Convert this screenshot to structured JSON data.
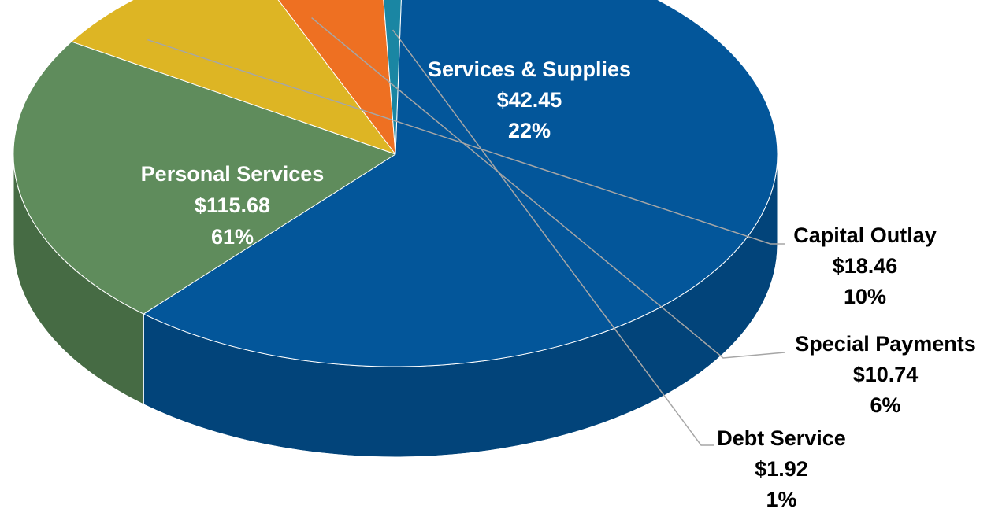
{
  "chart_data": {
    "type": "pie",
    "title": "",
    "slices": [
      {
        "label": "Personal Services",
        "value": 115.68,
        "value_label": "$115.68",
        "percent_label": "61%",
        "color": "#03569A",
        "side_color": "#02447A",
        "label_color": "#ffffff"
      },
      {
        "label": "Services & Supplies",
        "value": 42.45,
        "value_label": "$42.45",
        "percent_label": "22%",
        "color": "#5F8C5C",
        "side_color": "#466B44",
        "label_color": "#ffffff"
      },
      {
        "label": "Capital Outlay",
        "value": 18.46,
        "value_label": "$18.46",
        "percent_label": "10%",
        "color": "#DDB524",
        "side_color": "#6E5710",
        "label_color": "#000000"
      },
      {
        "label": "Special Payments",
        "value": 10.74,
        "value_label": "$10.74",
        "percent_label": "6%",
        "color": "#EE7022",
        "side_color": "#6A2E0E",
        "label_color": "#000000"
      },
      {
        "label": "Debt Service",
        "value": 1.92,
        "value_label": "$1.92",
        "percent_label": "1%",
        "color": "#1A86A3",
        "side_color": "#0E3E4A",
        "label_color": "#000000"
      }
    ],
    "style": "3d",
    "legend": "none"
  }
}
